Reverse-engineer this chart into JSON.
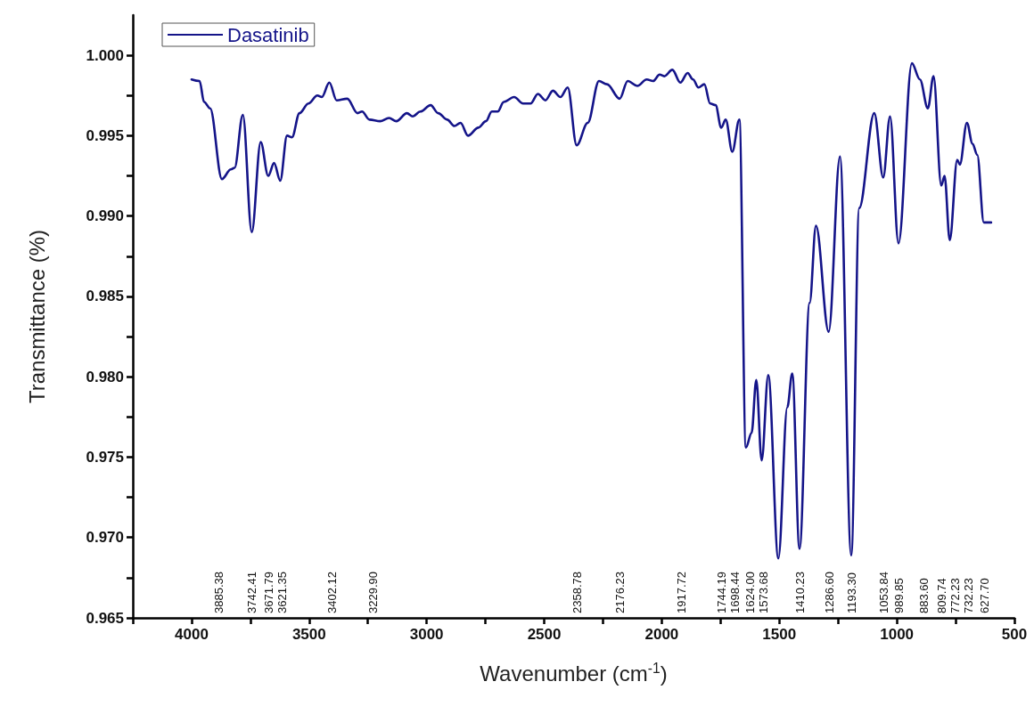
{
  "chart_data": {
    "type": "line",
    "xlabel": "Wavenumber (cm$^{-1}$)",
    "ylabel": "Transmittance (%)",
    "xlim": [
      4250,
      500
    ],
    "xticks": [
      {
        "value": 4250,
        "label": null
      },
      4000,
      {
        "value": 3750,
        "label": null
      },
      3500,
      {
        "value": 3250,
        "label": null
      },
      3000,
      {
        "value": 2750,
        "label": null
      },
      2500,
      {
        "value": 2250,
        "label": null
      },
      2000,
      {
        "value": 1750,
        "label": null
      },
      1500,
      {
        "value": 1250,
        "label": null
      },
      1000,
      {
        "value": 750,
        "label": null
      },
      500
    ],
    "ylim": [
      0.965,
      1.0025
    ],
    "yticks": [
      {
        "value": 0.965,
        "label": "0.965"
      },
      {
        "value": 0.9675,
        "label": null
      },
      {
        "value": 0.97,
        "label": "0.970"
      },
      {
        "value": 0.9725,
        "label": null
      },
      {
        "value": 0.975,
        "label": "0.975"
      },
      {
        "value": 0.9775,
        "label": null
      },
      {
        "value": 0.98,
        "label": "0.980"
      },
      {
        "value": 0.9825,
        "label": null
      },
      {
        "value": 0.985,
        "label": "0.985"
      },
      {
        "value": 0.9875,
        "label": null
      },
      {
        "value": 0.99,
        "label": "0.990"
      },
      {
        "value": 0.9925,
        "label": null
      },
      {
        "value": 0.995,
        "label": "0.995"
      },
      {
        "value": 0.9975,
        "label": null
      },
      {
        "value": 1.0,
        "label": "1.000"
      }
    ],
    "grid": false,
    "legend": "top left",
    "series": [
      {
        "name": "Dasatinib",
        "color": "#141489",
        "x": [
          4000,
          3966,
          3947,
          3921,
          3871,
          3833,
          3817,
          3782,
          3744,
          3706,
          3674,
          3649,
          3623,
          3594,
          3573,
          3541,
          3503,
          3465,
          3446,
          3414,
          3383,
          3338,
          3294,
          3275,
          3243,
          3198,
          3160,
          3129,
          3084,
          3059,
          3027,
          2983,
          2951,
          2913,
          2882,
          2856,
          2824,
          2780,
          2748,
          2723,
          2698,
          2672,
          2628,
          2590,
          2558,
          2527,
          2495,
          2463,
          2431,
          2400,
          2362,
          2315,
          2267,
          2233,
          2179,
          2145,
          2104,
          2064,
          2037,
          2009,
          1989,
          1955,
          1921,
          1890,
          1867,
          1844,
          1819,
          1794,
          1771,
          1747,
          1728,
          1700,
          1670,
          1642,
          1618,
          1598,
          1575,
          1547,
          1504,
          1466,
          1445,
          1414,
          1371,
          1344,
          1290,
          1242,
          1194,
          1160,
          1096,
          1058,
          1029,
          993,
          936,
          902,
          868,
          844,
          811,
          797,
          775,
          743,
          732,
          702,
          678,
          658,
          630,
          599
        ],
        "values": [
          0.9985,
          0.9984,
          0.9971,
          0.9967,
          0.9923,
          0.9929,
          0.993,
          0.9963,
          0.989,
          0.9946,
          0.9925,
          0.9933,
          0.9922,
          0.995,
          0.9949,
          0.9964,
          0.997,
          0.9975,
          0.9974,
          0.9983,
          0.9972,
          0.9973,
          0.9964,
          0.9965,
          0.996,
          0.9959,
          0.9961,
          0.9959,
          0.9964,
          0.9962,
          0.9965,
          0.9969,
          0.9964,
          0.996,
          0.9956,
          0.9958,
          0.995,
          0.9955,
          0.9959,
          0.9965,
          0.9965,
          0.9971,
          0.9974,
          0.997,
          0.997,
          0.9976,
          0.9972,
          0.9978,
          0.9974,
          0.998,
          0.9944,
          0.9958,
          0.9984,
          0.9982,
          0.9973,
          0.9984,
          0.9981,
          0.9985,
          0.9984,
          0.9988,
          0.9987,
          0.9991,
          0.9983,
          0.9989,
          0.9985,
          0.998,
          0.9982,
          0.997,
          0.9969,
          0.9955,
          0.996,
          0.994,
          0.996,
          0.9756,
          0.9765,
          0.9798,
          0.9748,
          0.9801,
          0.9687,
          0.9781,
          0.9802,
          0.9693,
          0.9846,
          0.9894,
          0.9828,
          0.9937,
          0.9689,
          0.9905,
          0.9964,
          0.9924,
          0.9962,
          0.9883,
          0.9995,
          0.9985,
          0.9967,
          0.9987,
          0.9919,
          0.9925,
          0.9885,
          0.9935,
          0.9932,
          0.9958,
          0.9945,
          0.9938,
          0.9896,
          0.9896
        ]
      }
    ],
    "annotations": [
      "3885.38",
      "3742.41",
      "3671.79",
      "3621.35",
      "3402.12",
      "3229.90",
      "2358.78",
      "2176.23",
      "1917.72",
      "1744.19",
      "1698.44",
      "1624.00",
      "1573.68",
      "1410.23",
      "1286.60",
      "1193.30",
      "1053.84",
      "989.85",
      "883.60",
      "809.74",
      "772.23",
      "732.23",
      "627.70"
    ]
  }
}
